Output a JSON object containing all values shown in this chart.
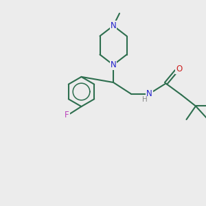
{
  "bg_color": "#ececec",
  "bond_color": "#2d6e4e",
  "N_color": "#2020cc",
  "O_color": "#cc2020",
  "F_color": "#bb44bb",
  "H_color": "#888888",
  "line_width": 1.5,
  "fig_size": [
    3.0,
    3.0
  ],
  "dpi": 100,
  "xlim": [
    0,
    10
  ],
  "ylim": [
    0,
    10
  ]
}
